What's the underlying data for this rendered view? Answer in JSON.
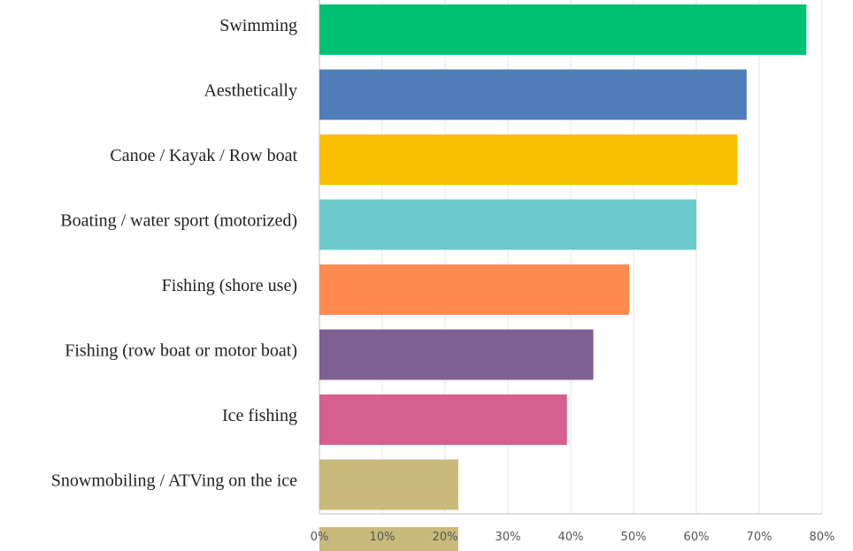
{
  "chart_data": {
    "type": "bar",
    "orientation": "horizontal",
    "title": "",
    "xlabel": "",
    "ylabel": "",
    "xlim": [
      0,
      0.8
    ],
    "grid": true,
    "legend": "none",
    "tick_labels": [
      "0%",
      "10%",
      "20%",
      "30%",
      "40%",
      "50%",
      "60%",
      "70%",
      "80%"
    ],
    "categories": [
      "Swimming",
      "Aesthetically",
      "Canoe / Kayak / Row boat",
      "Boating / water sport (motorized)",
      "Fishing (shore use)",
      "Fishing (row boat or motor boat)",
      "Ice fishing",
      "Snowmobiling / ATVing on the ice"
    ],
    "values": [
      0.775,
      0.68,
      0.665,
      0.6,
      0.493,
      0.436,
      0.394,
      0.221
    ],
    "bar_colors": [
      "#00c072",
      "#4f7db7",
      "#f7bf00",
      "#6ccacd",
      "#ff8b52",
      "#7f5f93",
      "#d5608e",
      "#c9b97b"
    ],
    "trailing_bar": {
      "value": 0.221,
      "color": "#c9b97b"
    }
  }
}
